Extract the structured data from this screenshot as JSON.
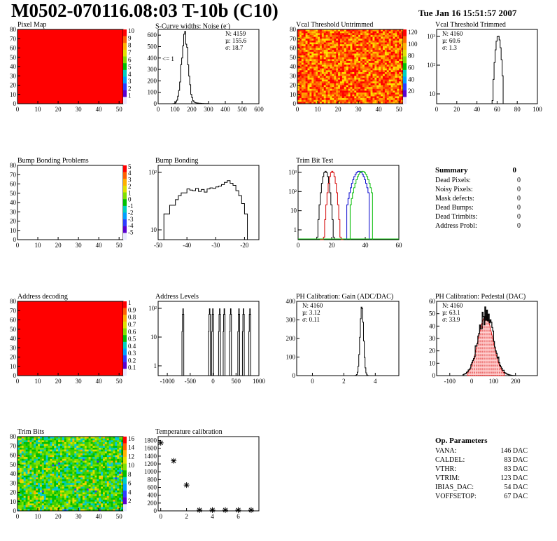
{
  "title": "M0502-070116.08:03 T-10b (C10)",
  "date": "Tue Jan 16 15:51:57 2007",
  "panels": {
    "pixel_map": {
      "title": "Pixel Map"
    },
    "scurve": {
      "title": "S-Curve widths: Noise (e",
      "title_sup": "-",
      "title_end": ")",
      "stats": [
        "N: 4159",
        "µ: 155.6",
        "σ: 18.7"
      ],
      "annot": "<= 1"
    },
    "vcal_untrimmed": {
      "title": "Vcal Threshold Untrimmed"
    },
    "vcal_trimmed": {
      "title": "Vcal Threshold Trimmed",
      "stats": [
        "N: 4160",
        "µ: 60.6",
        "σ:  1.3"
      ]
    },
    "bump_problems": {
      "title": "Bump Bonding Problems"
    },
    "bump_bonding": {
      "title": "Bump Bonding"
    },
    "trim_bit_test": {
      "title": "Trim Bit Test"
    },
    "address_decoding": {
      "title": "Address decoding"
    },
    "address_levels": {
      "title": "Address Levels"
    },
    "ph_gain": {
      "title": "PH Calibration: Gain (ADC/DAC)",
      "stats": [
        "N: 4160",
        "µ: 3.12",
        "σ: 0.11"
      ]
    },
    "ph_pedestal": {
      "title": "PH Calibration: Pedestal (DAC)",
      "stats": [
        "N: 4160",
        "µ: 63.1",
        "σ: 33.9"
      ]
    },
    "trim_bits": {
      "title": "Trim Bits"
    },
    "temperature": {
      "title": "Temperature calibration"
    }
  },
  "summary": {
    "heading": "Summary",
    "total": "0",
    "rows": [
      {
        "label": "Dead Pixels:",
        "value": "0"
      },
      {
        "label": "Noisy Pixels:",
        "value": "0"
      },
      {
        "label": "Mask defects:",
        "value": "0"
      },
      {
        "label": "Dead Bumps:",
        "value": "0"
      },
      {
        "label": "Dead Trimbits:",
        "value": "0"
      },
      {
        "label": "Address Probl:",
        "value": "0"
      }
    ]
  },
  "op_params": {
    "heading": "Op. Parameters",
    "rows": [
      {
        "label": "VANA:",
        "value": "146 DAC"
      },
      {
        "label": "CALDEL:",
        "value": "83 DAC"
      },
      {
        "label": "VTHR:",
        "value": "83 DAC"
      },
      {
        "label": "VTRIM:",
        "value": "123 DAC"
      },
      {
        "label": "IBIAS_DAC:",
        "value": "54 DAC"
      },
      {
        "label": "VOFFSETOP:",
        "value": "67 DAC"
      }
    ]
  },
  "chart_data": [
    {
      "name": "pixel_map",
      "type": "heatmap",
      "xlim": [
        0,
        52
      ],
      "ylim": [
        0,
        80
      ],
      "xticks": [
        0,
        10,
        20,
        30,
        40,
        50
      ],
      "yticks": [
        0,
        10,
        20,
        30,
        40,
        50,
        60,
        70,
        80
      ],
      "fill": "uniform",
      "fill_color": "#ff0000",
      "zscale": [
        1,
        2,
        3,
        4,
        5,
        6,
        7,
        8,
        9,
        10
      ]
    },
    {
      "name": "scurve",
      "type": "histogram",
      "xlim": [
        0,
        600
      ],
      "ylim": [
        0,
        650
      ],
      "xticks": [
        0,
        100,
        200,
        300,
        400,
        500,
        600
      ],
      "yticks": [
        0,
        100,
        200,
        300,
        400,
        500,
        600
      ],
      "mean": 155.6,
      "sigma": 18.7,
      "peak": 620
    },
    {
      "name": "vcal_untrimmed",
      "type": "heatmap",
      "xlim": [
        0,
        52
      ],
      "ylim": [
        0,
        80
      ],
      "xticks": [
        0,
        10,
        20,
        30,
        40,
        50
      ],
      "yticks": [
        0,
        10,
        20,
        30,
        40,
        50,
        60,
        70,
        80
      ],
      "fill": "noise-warm",
      "zscale": [
        20,
        40,
        60,
        80,
        100,
        120
      ]
    },
    {
      "name": "vcal_trimmed",
      "type": "histogram",
      "log_y": true,
      "xlim": [
        0,
        100
      ],
      "xticks": [
        0,
        20,
        40,
        60,
        80,
        100
      ],
      "ylabels": [
        "10",
        "10²",
        "10³"
      ],
      "mean": 60.6,
      "sigma": 1.3,
      "peak": 1500
    },
    {
      "name": "bump_problems",
      "type": "heatmap",
      "xlim": [
        0,
        52
      ],
      "ylim": [
        0,
        80
      ],
      "xticks": [
        0,
        10,
        20,
        30,
        40,
        50
      ],
      "yticks": [
        0,
        10,
        20,
        30,
        40,
        50,
        60,
        70,
        80
      ],
      "fill": "empty",
      "zscale": [
        -5,
        -4,
        -3,
        -2,
        -1,
        0,
        1,
        2,
        3,
        4,
        5
      ]
    },
    {
      "name": "bump_bonding",
      "type": "histogram",
      "log_y": true,
      "xlim": [
        -50,
        -15
      ],
      "xticks": [
        -50,
        -40,
        -30,
        -20
      ],
      "ylabels": [
        "10",
        "10²"
      ]
    },
    {
      "name": "trim_bit_test",
      "type": "histogram",
      "log_y": true,
      "xlim": [
        0,
        60
      ],
      "xticks": [
        0,
        20,
        40,
        60
      ],
      "ylabels": [
        "1",
        "10",
        "10²",
        "10³"
      ],
      "series": [
        {
          "color": "#000000",
          "center": 16
        },
        {
          "color": "#d40000",
          "center": 20
        },
        {
          "color": "#0000cc",
          "center": 36
        },
        {
          "color": "#00bb00",
          "center": 38
        }
      ]
    },
    {
      "name": "address_decoding",
      "type": "heatmap",
      "xlim": [
        0,
        52
      ],
      "ylim": [
        0,
        80
      ],
      "xticks": [
        0,
        10,
        20,
        30,
        40,
        50
      ],
      "yticks": [
        0,
        10,
        20,
        30,
        40,
        50,
        60,
        70,
        80
      ],
      "fill": "uniform",
      "fill_color": "#ff0000",
      "zscale": [
        0.1,
        0.2,
        0.3,
        0.4,
        0.5,
        0.6,
        0.7,
        0.8,
        0.9,
        1
      ]
    },
    {
      "name": "address_levels",
      "type": "histogram",
      "log_y": true,
      "xlim": [
        -1200,
        1000
      ],
      "xticks": [
        -1000,
        -500,
        0,
        500,
        1000
      ],
      "ylabels": [
        "1",
        "10",
        "10²"
      ],
      "peaks": [
        -660,
        -80,
        -10,
        140,
        240,
        380,
        560,
        660,
        800
      ]
    },
    {
      "name": "ph_gain",
      "type": "histogram",
      "xlim": [
        -1,
        5.5
      ],
      "xticks": [
        0,
        2,
        4
      ],
      "ylim": [
        0,
        400
      ],
      "yticks": [
        0,
        100,
        200,
        300,
        400
      ],
      "mean": 3.12,
      "sigma": 0.11,
      "peak": 375
    },
    {
      "name": "ph_pedestal",
      "type": "histogram",
      "xlim": [
        -160,
        300
      ],
      "xticks": [
        -100,
        0,
        100,
        200
      ],
      "ylim": [
        0,
        60
      ],
      "yticks": [
        0,
        10,
        20,
        30,
        40,
        50,
        60
      ],
      "mean": 63.1,
      "sigma": 33.9,
      "peak": 52,
      "fit_color": "#d40000"
    },
    {
      "name": "trim_bits",
      "type": "heatmap",
      "xlim": [
        0,
        52
      ],
      "ylim": [
        0,
        80
      ],
      "xticks": [
        0,
        10,
        20,
        30,
        40,
        50
      ],
      "yticks": [
        0,
        10,
        20,
        30,
        40,
        50,
        60,
        70,
        80
      ],
      "fill": "noise-cool",
      "zscale": [
        2,
        4,
        6,
        8,
        10,
        12,
        14,
        16
      ]
    },
    {
      "name": "temperature",
      "type": "scatter",
      "xlim": [
        -0.2,
        7.6
      ],
      "xticks": [
        0,
        2,
        4,
        6
      ],
      "ylim": [
        0,
        1900
      ],
      "yticks": [
        0,
        200,
        400,
        600,
        800,
        1000,
        1200,
        1400,
        1600,
        1800
      ],
      "x": [
        0,
        1,
        2,
        3,
        4,
        5,
        6,
        7
      ],
      "y": [
        1740,
        1280,
        660,
        20,
        20,
        20,
        20,
        20
      ]
    }
  ]
}
